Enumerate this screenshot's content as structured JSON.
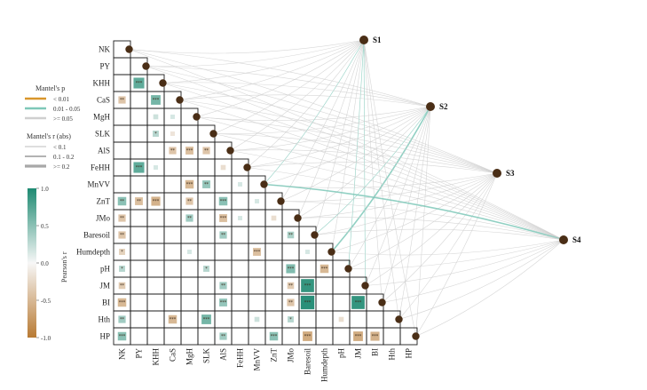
{
  "chart_data": {
    "type": "heatmap",
    "variables": [
      "NK",
      "PY",
      "KHH",
      "CaS",
      "MgH",
      "SLK",
      "AlS",
      "FeHH",
      "MnVV",
      "ZnT",
      "JMo",
      "Baresoil",
      "Humdepth",
      "pH",
      "JM",
      "BI",
      "Hth",
      "HP"
    ],
    "x_tick_labels": [
      "NK",
      "PY",
      "KHH",
      "CaS",
      "MgH",
      "SLK",
      "AlS",
      "FeHH",
      "MnVV",
      "ZnT",
      "JMo",
      "Baresoil",
      "Humdepth",
      "pH",
      "JM",
      "BI",
      "Hth",
      "HP"
    ],
    "sites": [
      "S1",
      "S2",
      "S3",
      "S4"
    ],
    "significance_marks": [
      "*",
      "**",
      "***"
    ],
    "correlation_cells": [
      {
        "row": 2,
        "col": 1,
        "r": 0.7,
        "sig": "***"
      },
      {
        "row": 3,
        "col": 0,
        "r": -0.4,
        "sig": "**"
      },
      {
        "row": 3,
        "col": 2,
        "r": 0.6,
        "sig": "***"
      },
      {
        "row": 4,
        "col": 2,
        "r": 0.2,
        "sig": ""
      },
      {
        "row": 4,
        "col": 3,
        "r": 0.15,
        "sig": ""
      },
      {
        "row": 5,
        "col": 2,
        "r": 0.3,
        "sig": "*"
      },
      {
        "row": 5,
        "col": 3,
        "r": -0.15,
        "sig": ""
      },
      {
        "row": 6,
        "col": 3,
        "r": -0.4,
        "sig": "**"
      },
      {
        "row": 6,
        "col": 4,
        "r": -0.45,
        "sig": "***"
      },
      {
        "row": 6,
        "col": 5,
        "r": -0.4,
        "sig": "**"
      },
      {
        "row": 7,
        "col": 1,
        "r": 0.7,
        "sig": "***"
      },
      {
        "row": 7,
        "col": 2,
        "r": 0.15,
        "sig": ""
      },
      {
        "row": 7,
        "col": 6,
        "r": -0.2,
        "sig": ""
      },
      {
        "row": 8,
        "col": 4,
        "r": -0.5,
        "sig": "***"
      },
      {
        "row": 8,
        "col": 5,
        "r": 0.45,
        "sig": "**"
      },
      {
        "row": 8,
        "col": 7,
        "r": 0.15,
        "sig": ""
      },
      {
        "row": 9,
        "col": 0,
        "r": 0.5,
        "sig": "**"
      },
      {
        "row": 9,
        "col": 1,
        "r": -0.45,
        "sig": "**"
      },
      {
        "row": 9,
        "col": 2,
        "r": -0.55,
        "sig": "***"
      },
      {
        "row": 9,
        "col": 4,
        "r": -0.4,
        "sig": "**"
      },
      {
        "row": 9,
        "col": 6,
        "r": 0.5,
        "sig": "***"
      },
      {
        "row": 9,
        "col": 8,
        "r": 0.15,
        "sig": ""
      },
      {
        "row": 10,
        "col": 0,
        "r": -0.4,
        "sig": "**"
      },
      {
        "row": 10,
        "col": 4,
        "r": 0.4,
        "sig": "**"
      },
      {
        "row": 10,
        "col": 6,
        "r": -0.45,
        "sig": "***"
      },
      {
        "row": 10,
        "col": 7,
        "r": 0.15,
        "sig": ""
      },
      {
        "row": 10,
        "col": 9,
        "r": -0.2,
        "sig": ""
      },
      {
        "row": 11,
        "col": 0,
        "r": -0.4,
        "sig": "**"
      },
      {
        "row": 11,
        "col": 6,
        "r": 0.4,
        "sig": "**"
      },
      {
        "row": 11,
        "col": 10,
        "r": 0.35,
        "sig": "**"
      },
      {
        "row": 12,
        "col": 0,
        "r": -0.3,
        "sig": "*"
      },
      {
        "row": 12,
        "col": 4,
        "r": 0.15,
        "sig": ""
      },
      {
        "row": 12,
        "col": 8,
        "r": -0.45,
        "sig": "***"
      },
      {
        "row": 12,
        "col": 11,
        "r": 0.15,
        "sig": ""
      },
      {
        "row": 13,
        "col": 0,
        "r": 0.3,
        "sig": "*"
      },
      {
        "row": 13,
        "col": 5,
        "r": 0.3,
        "sig": "*"
      },
      {
        "row": 13,
        "col": 10,
        "r": 0.55,
        "sig": "***"
      },
      {
        "row": 13,
        "col": 12,
        "r": -0.5,
        "sig": "***"
      },
      {
        "row": 14,
        "col": 0,
        "r": -0.35,
        "sig": "**"
      },
      {
        "row": 14,
        "col": 6,
        "r": 0.4,
        "sig": "**"
      },
      {
        "row": 14,
        "col": 10,
        "r": -0.35,
        "sig": "**"
      },
      {
        "row": 14,
        "col": 11,
        "r": 0.9,
        "sig": "***"
      },
      {
        "row": 15,
        "col": 0,
        "r": -0.5,
        "sig": "***"
      },
      {
        "row": 15,
        "col": 6,
        "r": 0.45,
        "sig": "***"
      },
      {
        "row": 15,
        "col": 10,
        "r": -0.4,
        "sig": "**"
      },
      {
        "row": 15,
        "col": 11,
        "r": 0.95,
        "sig": "***"
      },
      {
        "row": 15,
        "col": 14,
        "r": 0.9,
        "sig": "***"
      },
      {
        "row": 16,
        "col": 0,
        "r": 0.4,
        "sig": "**"
      },
      {
        "row": 16,
        "col": 3,
        "r": -0.5,
        "sig": "***"
      },
      {
        "row": 16,
        "col": 5,
        "r": 0.6,
        "sig": "***"
      },
      {
        "row": 16,
        "col": 8,
        "r": 0.2,
        "sig": ""
      },
      {
        "row": 16,
        "col": 10,
        "r": 0.3,
        "sig": "*"
      },
      {
        "row": 16,
        "col": 13,
        "r": -0.2,
        "sig": ""
      },
      {
        "row": 17,
        "col": 0,
        "r": 0.5,
        "sig": "***"
      },
      {
        "row": 17,
        "col": 6,
        "r": 0.4,
        "sig": "**"
      },
      {
        "row": 17,
        "col": 9,
        "r": 0.5,
        "sig": "***"
      },
      {
        "row": 17,
        "col": 11,
        "r": -0.6,
        "sig": "***"
      },
      {
        "row": 17,
        "col": 14,
        "r": -0.6,
        "sig": "***"
      },
      {
        "row": 17,
        "col": 15,
        "r": -0.55,
        "sig": "***"
      }
    ],
    "mantel_links": [
      {
        "site": "S1",
        "variable": "NK",
        "p_class": ">= 0.05",
        "r_class": "< 0.1"
      },
      {
        "site": "S1",
        "variable": "PY",
        "p_class": ">= 0.05",
        "r_class": "< 0.1"
      },
      {
        "site": "S1",
        "variable": "KHH",
        "p_class": ">= 0.05",
        "r_class": "< 0.1"
      },
      {
        "site": "S1",
        "variable": "CaS",
        "p_class": ">= 0.05",
        "r_class": "< 0.1"
      },
      {
        "site": "S1",
        "variable": "MgH",
        "p_class": ">= 0.05",
        "r_class": "< 0.1"
      },
      {
        "site": "S1",
        "variable": "SLK",
        "p_class": ">= 0.05",
        "r_class": "< 0.1"
      },
      {
        "site": "S1",
        "variable": "AlS",
        "p_class": ">= 0.05",
        "r_class": "< 0.1"
      },
      {
        "site": "S1",
        "variable": "FeHH",
        "p_class": ">= 0.05",
        "r_class": "< 0.1"
      },
      {
        "site": "S1",
        "variable": "MnVV",
        "p_class": "0.01 - 0.05",
        "r_class": "< 0.1"
      },
      {
        "site": "S1",
        "variable": "ZnT",
        "p_class": ">= 0.05",
        "r_class": "< 0.1"
      },
      {
        "site": "S1",
        "variable": "JMo",
        "p_class": ">= 0.05",
        "r_class": "< 0.1"
      },
      {
        "site": "S1",
        "variable": "Baresoil",
        "p_class": ">= 0.05",
        "r_class": "< 0.1"
      },
      {
        "site": "S1",
        "variable": "Humdepth",
        "p_class": ">= 0.05",
        "r_class": "< 0.1"
      },
      {
        "site": "S1",
        "variable": "pH",
        "p_class": "0.01 - 0.05",
        "r_class": "< 0.1"
      },
      {
        "site": "S1",
        "variable": "JM",
        "p_class": "0.01 - 0.05",
        "r_class": "< 0.1"
      },
      {
        "site": "S1",
        "variable": "BI",
        "p_class": ">= 0.05",
        "r_class": "< 0.1"
      },
      {
        "site": "S1",
        "variable": "Hth",
        "p_class": ">= 0.05",
        "r_class": "< 0.1"
      },
      {
        "site": "S1",
        "variable": "HP",
        "p_class": ">= 0.05",
        "r_class": "< 0.1"
      },
      {
        "site": "S2",
        "variable": "NK",
        "p_class": ">= 0.05",
        "r_class": "< 0.1"
      },
      {
        "site": "S2",
        "variable": "PY",
        "p_class": ">= 0.05",
        "r_class": "< 0.1"
      },
      {
        "site": "S2",
        "variable": "KHH",
        "p_class": ">= 0.05",
        "r_class": "< 0.1"
      },
      {
        "site": "S2",
        "variable": "CaS",
        "p_class": ">= 0.05",
        "r_class": "< 0.1"
      },
      {
        "site": "S2",
        "variable": "MgH",
        "p_class": ">= 0.05",
        "r_class": "< 0.1"
      },
      {
        "site": "S2",
        "variable": "SLK",
        "p_class": ">= 0.05",
        "r_class": "< 0.1"
      },
      {
        "site": "S2",
        "variable": "AlS",
        "p_class": ">= 0.05",
        "r_class": "< 0.1"
      },
      {
        "site": "S2",
        "variable": "FeHH",
        "p_class": ">= 0.05",
        "r_class": "< 0.1"
      },
      {
        "site": "S2",
        "variable": "MnVV",
        "p_class": ">= 0.05",
        "r_class": "< 0.1"
      },
      {
        "site": "S2",
        "variable": "ZnT",
        "p_class": ">= 0.05",
        "r_class": "< 0.1"
      },
      {
        "site": "S2",
        "variable": "JMo",
        "p_class": ">= 0.05",
        "r_class": "< 0.1"
      },
      {
        "site": "S2",
        "variable": "Baresoil",
        "p_class": "0.01 - 0.05",
        "r_class": "< 0.1"
      },
      {
        "site": "S2",
        "variable": "Humdepth",
        "p_class": "0.01 - 0.05",
        "r_class": "0.1 - 0.2"
      },
      {
        "site": "S2",
        "variable": "pH",
        "p_class": ">= 0.05",
        "r_class": "< 0.1"
      },
      {
        "site": "S2",
        "variable": "JM",
        "p_class": ">= 0.05",
        "r_class": "< 0.1"
      },
      {
        "site": "S2",
        "variable": "BI",
        "p_class": ">= 0.05",
        "r_class": "< 0.1"
      },
      {
        "site": "S2",
        "variable": "Hth",
        "p_class": ">= 0.05",
        "r_class": "< 0.1"
      },
      {
        "site": "S2",
        "variable": "HP",
        "p_class": ">= 0.05",
        "r_class": "< 0.1"
      },
      {
        "site": "S3",
        "variable": "NK",
        "p_class": ">= 0.05",
        "r_class": "< 0.1"
      },
      {
        "site": "S3",
        "variable": "PY",
        "p_class": ">= 0.05",
        "r_class": "< 0.1"
      },
      {
        "site": "S3",
        "variable": "KHH",
        "p_class": ">= 0.05",
        "r_class": "< 0.1"
      },
      {
        "site": "S3",
        "variable": "CaS",
        "p_class": ">= 0.05",
        "r_class": "< 0.1"
      },
      {
        "site": "S3",
        "variable": "MgH",
        "p_class": ">= 0.05",
        "r_class": "< 0.1"
      },
      {
        "site": "S3",
        "variable": "SLK",
        "p_class": ">= 0.05",
        "r_class": "< 0.1"
      },
      {
        "site": "S3",
        "variable": "AlS",
        "p_class": ">= 0.05",
        "r_class": "< 0.1"
      },
      {
        "site": "S3",
        "variable": "FeHH",
        "p_class": ">= 0.05",
        "r_class": "< 0.1"
      },
      {
        "site": "S3",
        "variable": "MnVV",
        "p_class": ">= 0.05",
        "r_class": "< 0.1"
      },
      {
        "site": "S3",
        "variable": "ZnT",
        "p_class": ">= 0.05",
        "r_class": "< 0.1"
      },
      {
        "site": "S3",
        "variable": "JMo",
        "p_class": ">= 0.05",
        "r_class": "< 0.1"
      },
      {
        "site": "S3",
        "variable": "Baresoil",
        "p_class": ">= 0.05",
        "r_class": "< 0.1"
      },
      {
        "site": "S3",
        "variable": "Humdepth",
        "p_class": ">= 0.05",
        "r_class": "< 0.1"
      },
      {
        "site": "S3",
        "variable": "pH",
        "p_class": ">= 0.05",
        "r_class": "< 0.1"
      },
      {
        "site": "S3",
        "variable": "JM",
        "p_class": ">= 0.05",
        "r_class": "< 0.1"
      },
      {
        "site": "S3",
        "variable": "BI",
        "p_class": ">= 0.05",
        "r_class": "< 0.1"
      },
      {
        "site": "S3",
        "variable": "Hth",
        "p_class": ">= 0.05",
        "r_class": "< 0.1"
      },
      {
        "site": "S3",
        "variable": "HP",
        "p_class": ">= 0.05",
        "r_class": "< 0.1"
      },
      {
        "site": "S4",
        "variable": "NK",
        "p_class": ">= 0.05",
        "r_class": "< 0.1"
      },
      {
        "site": "S4",
        "variable": "PY",
        "p_class": ">= 0.05",
        "r_class": "< 0.1"
      },
      {
        "site": "S4",
        "variable": "KHH",
        "p_class": ">= 0.05",
        "r_class": "< 0.1"
      },
      {
        "site": "S4",
        "variable": "CaS",
        "p_class": ">= 0.05",
        "r_class": "< 0.1"
      },
      {
        "site": "S4",
        "variable": "MgH",
        "p_class": ">= 0.05",
        "r_class": "< 0.1"
      },
      {
        "site": "S4",
        "variable": "SLK",
        "p_class": ">= 0.05",
        "r_class": "< 0.1"
      },
      {
        "site": "S4",
        "variable": "AlS",
        "p_class": ">= 0.05",
        "r_class": "< 0.1"
      },
      {
        "site": "S4",
        "variable": "FeHH",
        "p_class": ">= 0.05",
        "r_class": "< 0.1"
      },
      {
        "site": "S4",
        "variable": "MnVV",
        "p_class": "0.01 - 0.05",
        "r_class": "0.1 - 0.2"
      },
      {
        "site": "S4",
        "variable": "ZnT",
        "p_class": ">= 0.05",
        "r_class": "< 0.1"
      },
      {
        "site": "S4",
        "variable": "JMo",
        "p_class": ">= 0.05",
        "r_class": "< 0.1"
      },
      {
        "site": "S4",
        "variable": "Baresoil",
        "p_class": ">= 0.05",
        "r_class": "< 0.1"
      },
      {
        "site": "S4",
        "variable": "Humdepth",
        "p_class": ">= 0.05",
        "r_class": "< 0.1"
      },
      {
        "site": "S4",
        "variable": "pH",
        "p_class": ">= 0.05",
        "r_class": "< 0.1"
      },
      {
        "site": "S4",
        "variable": "JM",
        "p_class": ">= 0.05",
        "r_class": "< 0.1"
      },
      {
        "site": "S4",
        "variable": "BI",
        "p_class": ">= 0.05",
        "r_class": "< 0.1"
      },
      {
        "site": "S4",
        "variable": "Hth",
        "p_class": ">= 0.05",
        "r_class": "< 0.1"
      },
      {
        "site": "S4",
        "variable": "HP",
        "p_class": ">= 0.05",
        "r_class": "< 0.1"
      }
    ],
    "legend": {
      "mantel_p": {
        "title": "Mantel's p",
        "items": [
          {
            "label": "< 0.01",
            "color": "#d9962b"
          },
          {
            "label": "0.01 - 0.05",
            "color": "#7ec8b8"
          },
          {
            "label": ">= 0.05",
            "color": "#cfcfcf"
          }
        ]
      },
      "mantel_r": {
        "title": "Mantel's r (abs)",
        "items": [
          {
            "label": "< 0.1"
          },
          {
            "label": "0.1 - 0.2"
          },
          {
            "label": ">= 0.2"
          }
        ]
      },
      "colorbar": {
        "title": "Pearson's r",
        "ticks": [
          "1.0",
          "0.5",
          "0.0",
          "-0.5",
          "-1.0"
        ],
        "range": [
          -1,
          1
        ],
        "low_color": "#b87a33",
        "mid_color": "#f7f7f7",
        "high_color": "#1e8a72"
      }
    },
    "link_line_color": "#d9d9d9",
    "node_color": "#4a2e16"
  }
}
